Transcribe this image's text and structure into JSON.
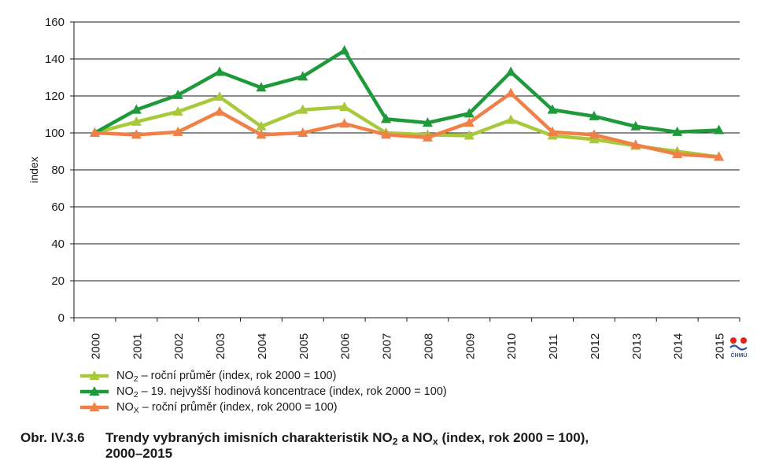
{
  "chart_data": {
    "type": "line",
    "ylabel": "index",
    "ylim": [
      0,
      160
    ],
    "yticks": [
      0,
      20,
      40,
      60,
      80,
      100,
      120,
      140,
      160
    ],
    "grid": true,
    "categories": [
      "2000",
      "2001",
      "2002",
      "2003",
      "2004",
      "2005",
      "2006",
      "2007",
      "2008",
      "2009",
      "2010",
      "2011",
      "2012",
      "2013",
      "2014",
      "2015"
    ],
    "series": [
      {
        "id": "no2-annual",
        "name_parts": [
          "NO",
          "2",
          " – roční průměr (index, rok 2000 = 100)"
        ],
        "color": "#a8c93a",
        "values": [
          100,
          106,
          111.5,
          119.5,
          103.5,
          112.5,
          114,
          100,
          99,
          98.5,
          107,
          98.5,
          96.5,
          93,
          90,
          87
        ]
      },
      {
        "id": "no2-19th-hourly",
        "name_parts": [
          "NO",
          "2",
          " – 19. nejvyšší hodinová koncentrace (index, rok 2000 = 100)"
        ],
        "color": "#1e9a3a",
        "values": [
          100,
          112.5,
          120.5,
          133,
          124.5,
          130.5,
          144.5,
          107.5,
          105.5,
          110.5,
          133,
          112.5,
          109,
          103.5,
          100.5,
          101.5
        ]
      },
      {
        "id": "nox-annual",
        "name_parts": [
          "NO",
          "X",
          " – roční průměr (index, rok 2000 = 100)"
        ],
        "color": "#ef8148",
        "values": [
          100,
          99,
          100.5,
          111.5,
          99,
          100,
          105,
          99,
          97.5,
          105.5,
          121.5,
          100.5,
          99,
          93.5,
          88.5,
          87
        ]
      }
    ]
  },
  "caption": {
    "figure_number": "Obr. IV.3.6",
    "title_parts": [
      "Trendy vybraných imisních charakteristik NO",
      "2",
      " a NO",
      "x",
      " (index, rok 2000 = 100),"
    ],
    "title_line2": "2000–2015"
  },
  "logo": {
    "text": "ČHMÚ",
    "colors": [
      "#e2231a",
      "#2f5aa8"
    ]
  }
}
